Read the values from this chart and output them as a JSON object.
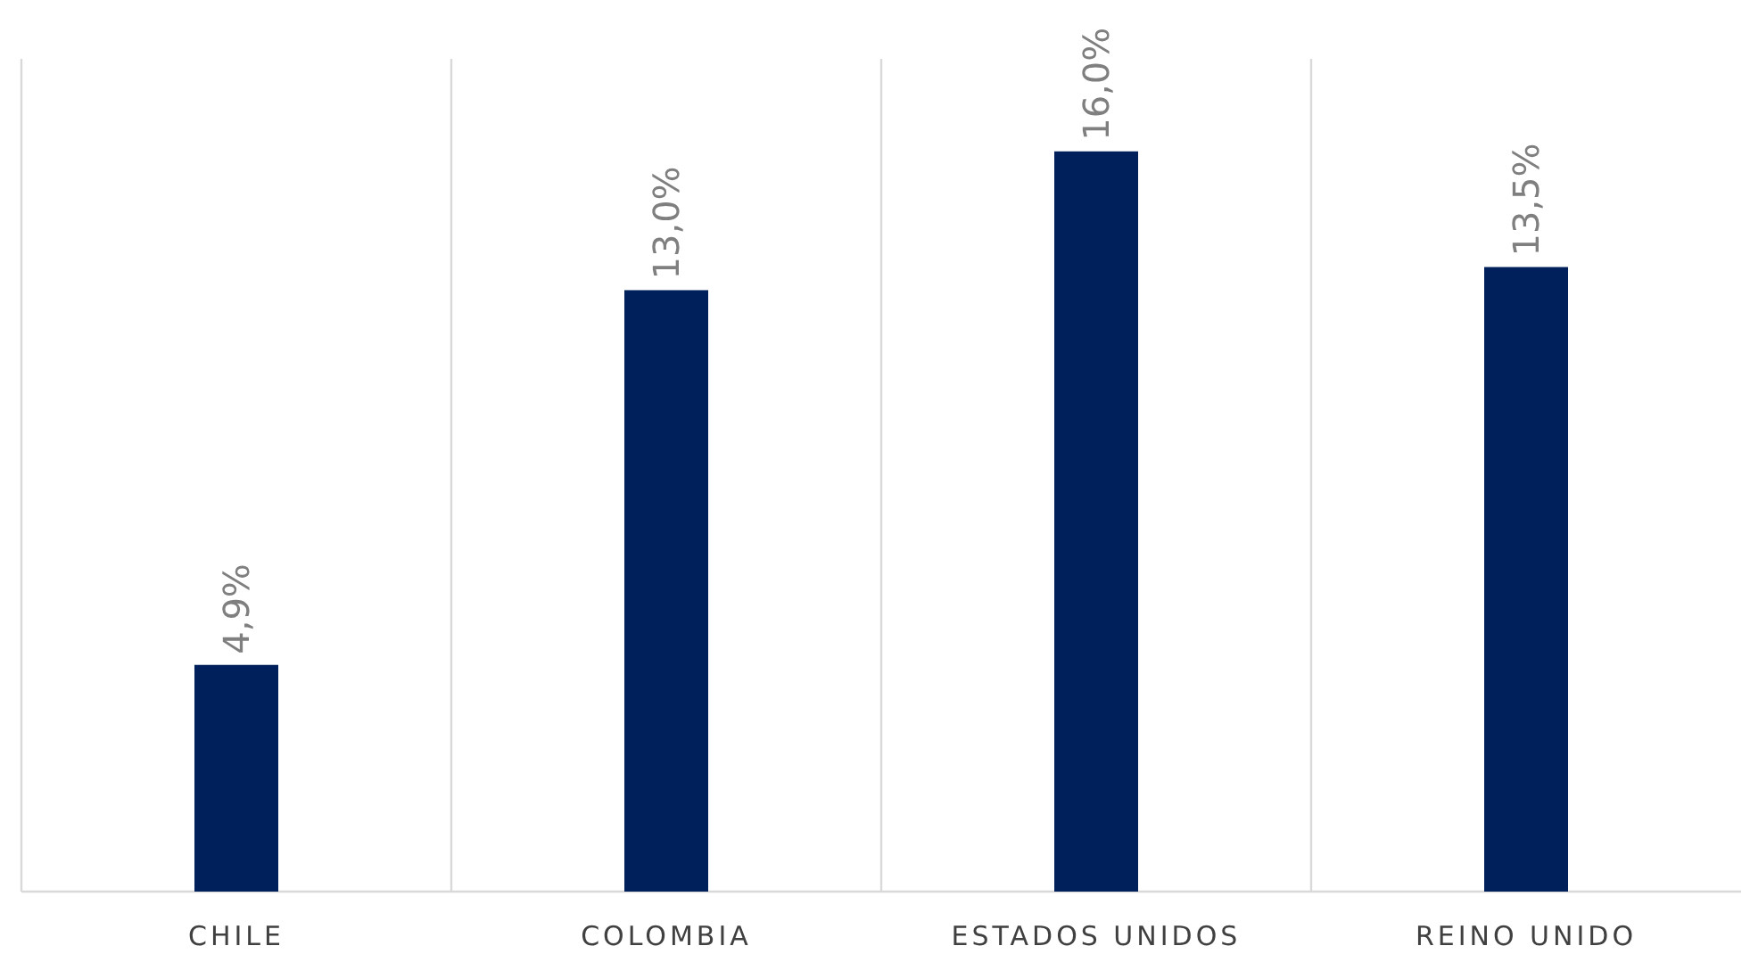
{
  "chart_data": {
    "type": "bar",
    "categories": [
      "CHILE",
      "COLOMBIA",
      "ESTADOS UNIDOS",
      "REINO UNIDO"
    ],
    "values": [
      4.9,
      13.0,
      16.0,
      13.5
    ],
    "value_labels": [
      "4,9%",
      "13,0%",
      "16,0%",
      "13,5%"
    ],
    "color": "#00205b",
    "ylim": [
      0,
      18
    ],
    "tick_labels": "x",
    "grid": "x"
  }
}
